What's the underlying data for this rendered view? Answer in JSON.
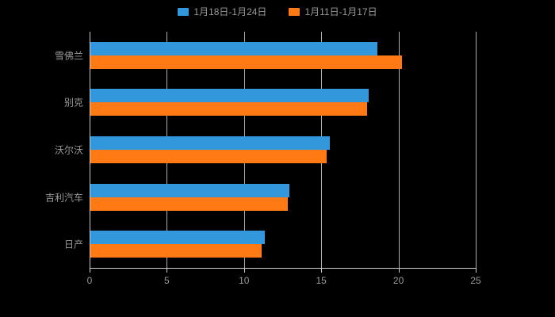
{
  "page": {
    "background": "#000000"
  },
  "legend": {
    "items": [
      {
        "label": "1月18日-1月24日",
        "color": "#3398DB"
      },
      {
        "label": "1月11日-1月17日",
        "color": "#FF7A14"
      }
    ]
  },
  "chart_data": {
    "type": "bar",
    "orientation": "horizontal",
    "title": "",
    "xlabel": "",
    "ylabel": "",
    "categories": [
      "雪佛兰",
      "别克",
      "沃尔沃",
      "吉利汽车",
      "日产"
    ],
    "series": [
      {
        "name": "1月18日-1月24日",
        "color": "#3398DB",
        "values": [
          18.6,
          18.0,
          15.5,
          12.9,
          11.3
        ]
      },
      {
        "name": "1月11日-1月17日",
        "color": "#FF7A14",
        "values": [
          20.2,
          17.9,
          15.3,
          12.8,
          11.1
        ]
      }
    ],
    "xlim": [
      0,
      25
    ],
    "xticks": [
      0,
      5,
      10,
      15,
      20,
      25
    ],
    "grid": true,
    "legend_position": "top",
    "axis_color": "#cccccc",
    "label_color": "#999999"
  }
}
